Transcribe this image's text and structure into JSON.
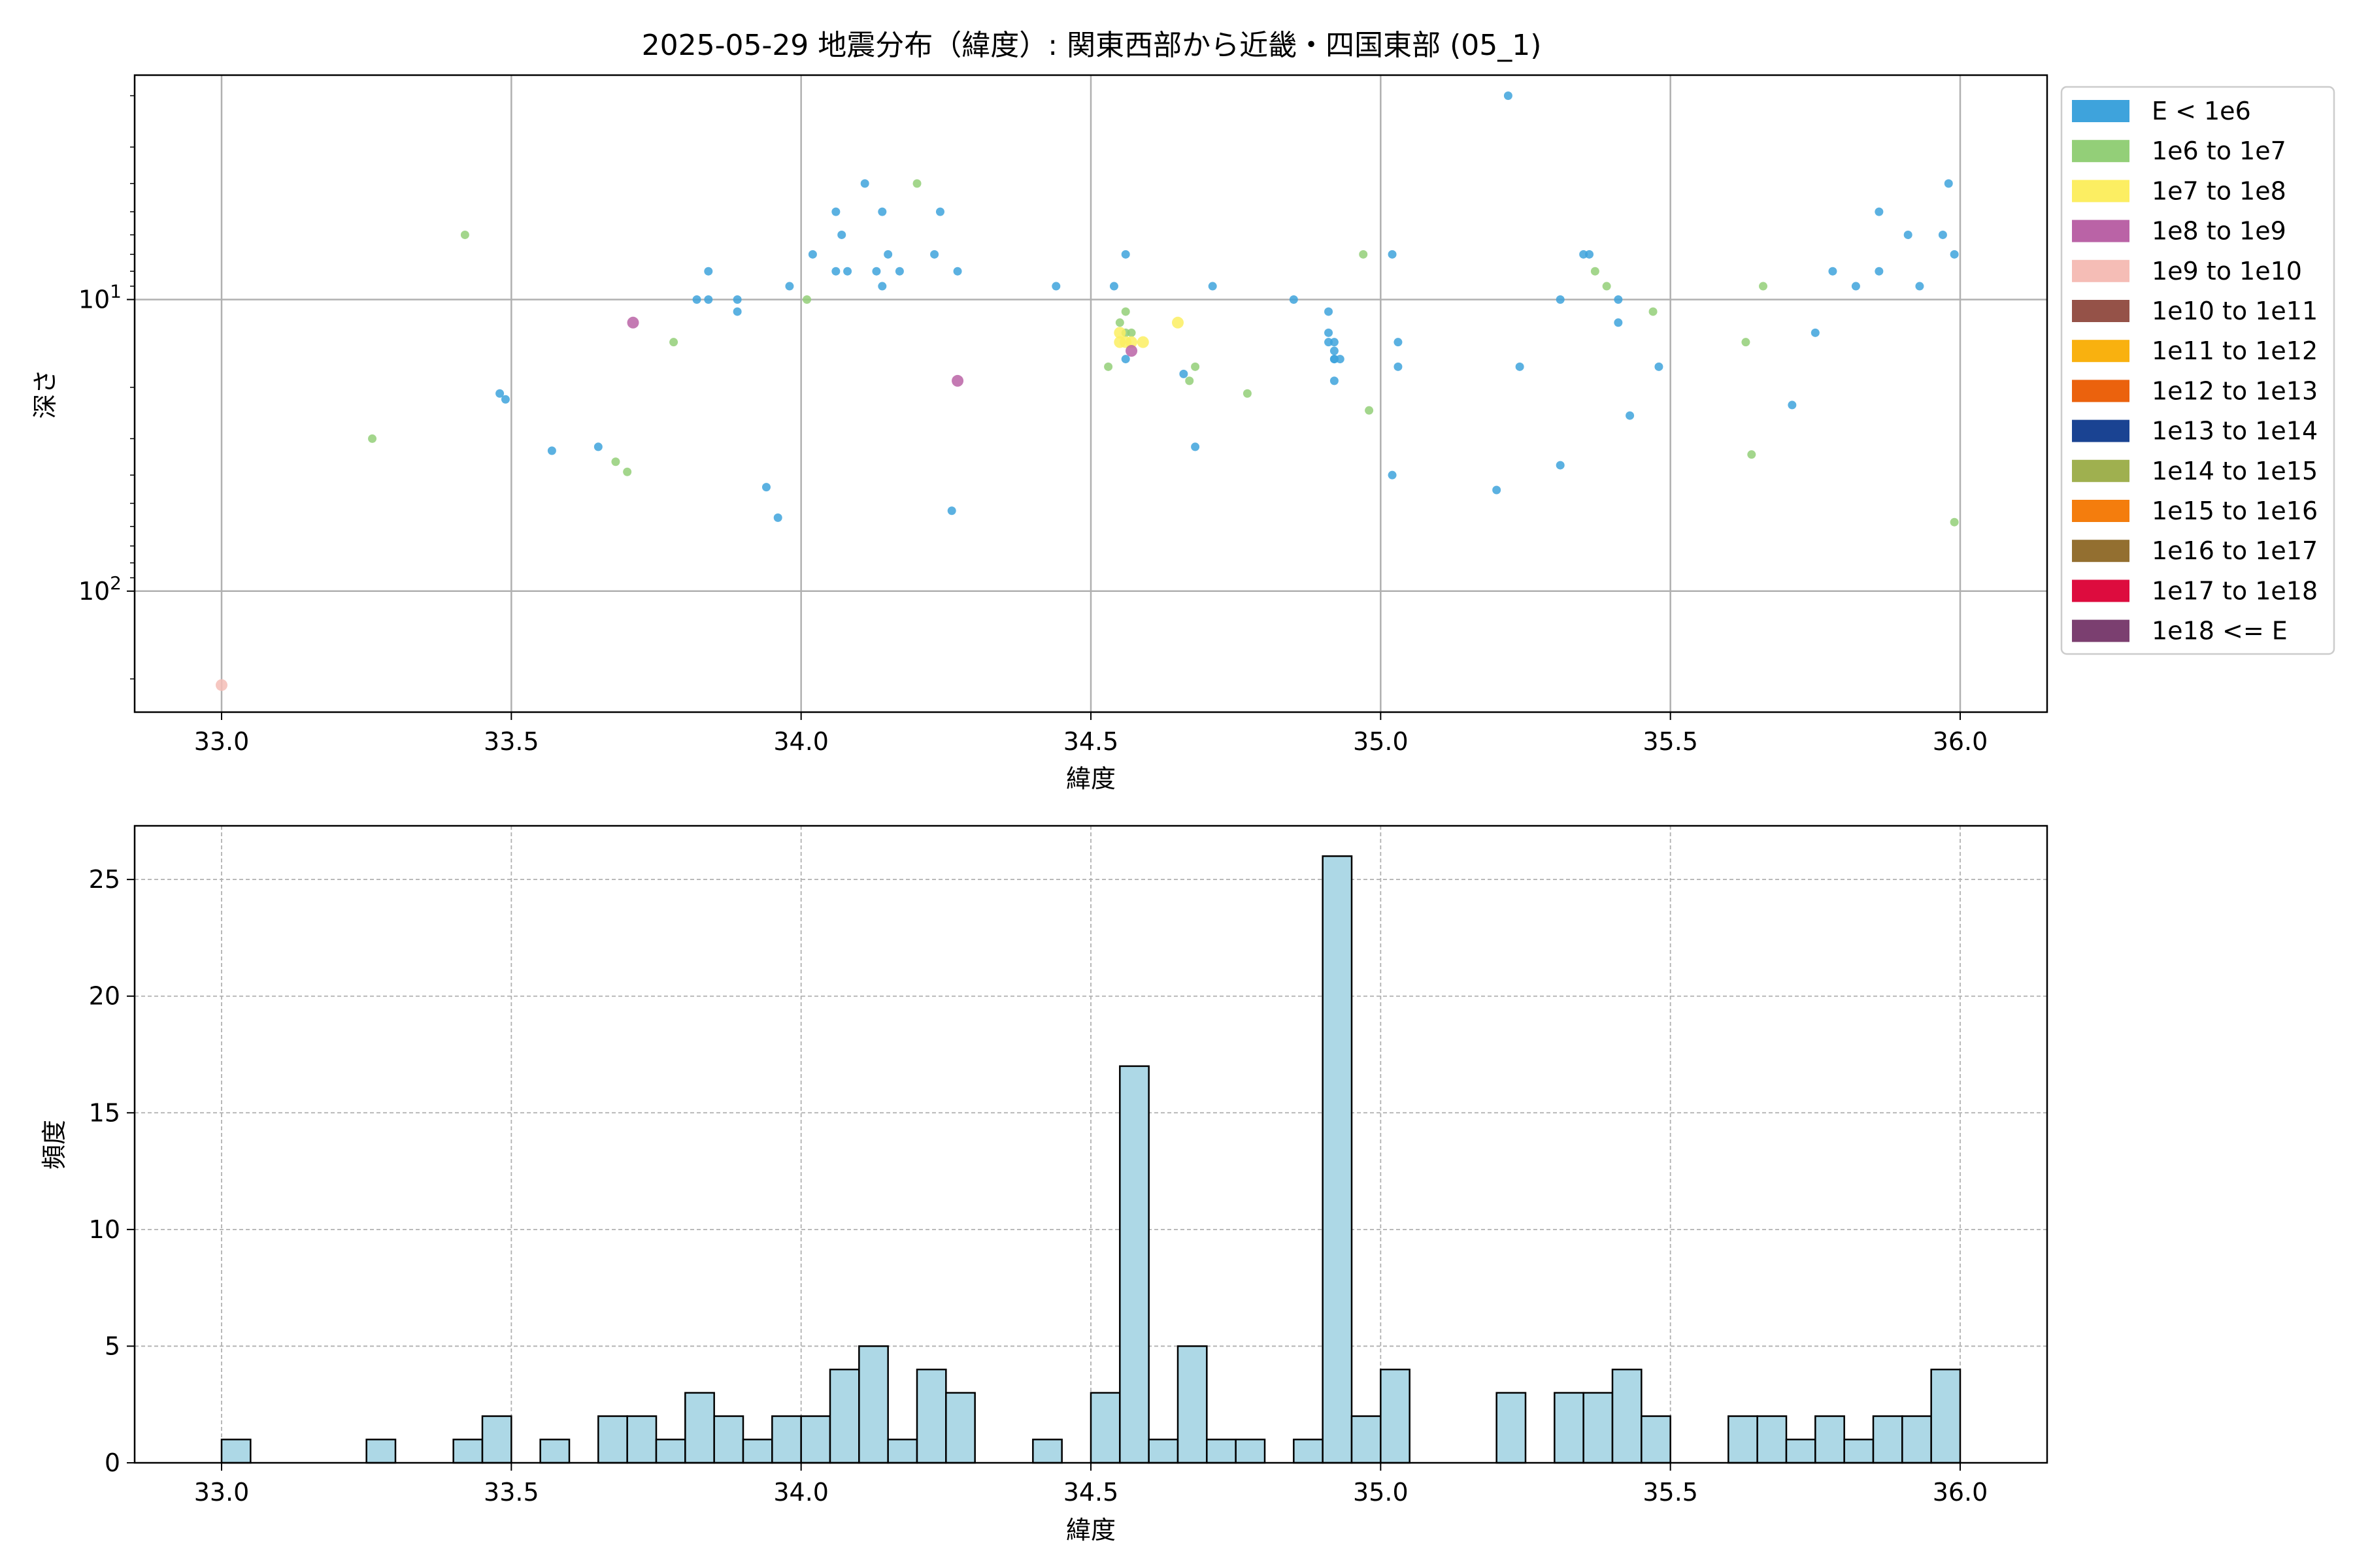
{
  "chart_data": [
    {
      "type": "scatter",
      "title": "2025-05-29 地震分布（緯度）: 関東西部から近畿・四国東部 (05_1)",
      "xlabel": "緯度",
      "ylabel": "深さ",
      "xlim": [
        32.85,
        36.15
      ],
      "ylim": [
        260,
        1.7
      ],
      "yscale": "log",
      "y_inverted": true,
      "grid": true,
      "legend_position": "outside-right",
      "x_ticks": [
        "33.0",
        "33.5",
        "34.0",
        "34.5",
        "35.0",
        "35.5",
        "36.0"
      ],
      "y_ticks": [
        {
          "value": 10,
          "base": "10",
          "exp": "1"
        },
        {
          "value": 100,
          "base": "10",
          "exp": "2"
        }
      ],
      "legend": [
        {
          "label": "E < 1e6",
          "color": "#3ea3dc"
        },
        {
          "label": "1e6 to 1e7",
          "color": "#93cf78"
        },
        {
          "label": "1e7 to 1e8",
          "color": "#fcee62"
        },
        {
          "label": "1e8 to 1e9",
          "color": "#ba63a6"
        },
        {
          "label": "1e9 to 1e10",
          "color": "#f5bdb6"
        },
        {
          "label": "1e10 to 1e11",
          "color": "#955248"
        },
        {
          "label": "1e11 to 1e12",
          "color": "#f9b10f"
        },
        {
          "label": "1e12 to 1e13",
          "color": "#eb620d"
        },
        {
          "label": "1e13 to 1e14",
          "color": "#1a4392"
        },
        {
          "label": "1e14 to 1e15",
          "color": "#9fb04f"
        },
        {
          "label": "1e15 to 1e16",
          "color": "#f47d0d"
        },
        {
          "label": "1e16 to 1e17",
          "color": "#936f30"
        },
        {
          "label": "1e17 to 1e18",
          "color": "#dd0c3e"
        },
        {
          "label": "1e18 <= E",
          "color": "#7b3f70"
        }
      ],
      "series": [
        {
          "name": "E < 1e6",
          "color": "#3ea3dc",
          "points": [
            [
              33.48,
              21
            ],
            [
              33.49,
              22
            ],
            [
              33.57,
              33
            ],
            [
              33.65,
              32
            ],
            [
              33.82,
              10
            ],
            [
              33.84,
              10
            ],
            [
              33.84,
              8
            ],
            [
              33.89,
              10
            ],
            [
              33.89,
              11
            ],
            [
              33.94,
              44
            ],
            [
              33.96,
              56
            ],
            [
              33.98,
              9
            ],
            [
              34.02,
              7
            ],
            [
              34.06,
              5
            ],
            [
              34.06,
              8
            ],
            [
              34.07,
              6
            ],
            [
              34.08,
              8
            ],
            [
              34.11,
              4
            ],
            [
              34.13,
              8
            ],
            [
              34.14,
              5
            ],
            [
              34.14,
              9
            ],
            [
              34.15,
              7
            ],
            [
              34.17,
              8
            ],
            [
              34.23,
              7
            ],
            [
              34.24,
              5
            ],
            [
              34.26,
              53
            ],
            [
              34.27,
              8
            ],
            [
              34.44,
              9
            ],
            [
              34.54,
              9
            ],
            [
              34.56,
              7
            ],
            [
              34.56,
              16
            ],
            [
              34.66,
              18
            ],
            [
              34.68,
              32
            ],
            [
              34.71,
              9
            ],
            [
              34.85,
              10
            ],
            [
              34.91,
              13
            ],
            [
              34.91,
              11
            ],
            [
              34.91,
              14
            ],
            [
              34.92,
              14
            ],
            [
              34.92,
              15
            ],
            [
              34.92,
              16
            ],
            [
              34.92,
              16
            ],
            [
              34.93,
              16
            ],
            [
              34.92,
              19
            ],
            [
              35.02,
              7
            ],
            [
              35.02,
              40
            ],
            [
              35.03,
              14
            ],
            [
              35.03,
              17
            ],
            [
              35.2,
              45
            ],
            [
              35.22,
              2
            ],
            [
              35.24,
              17
            ],
            [
              35.31,
              10
            ],
            [
              35.31,
              37
            ],
            [
              35.35,
              7
            ],
            [
              35.36,
              7
            ],
            [
              35.41,
              10
            ],
            [
              35.41,
              12
            ],
            [
              35.43,
              25
            ],
            [
              35.48,
              17
            ],
            [
              35.71,
              23
            ],
            [
              35.75,
              13
            ],
            [
              35.78,
              8
            ],
            [
              35.82,
              9
            ],
            [
              35.86,
              5
            ],
            [
              35.86,
              8
            ],
            [
              35.91,
              6
            ],
            [
              35.93,
              9
            ],
            [
              35.97,
              6
            ],
            [
              35.98,
              4
            ],
            [
              35.99,
              7
            ]
          ]
        },
        {
          "name": "1e6 to 1e7",
          "color": "#93cf78",
          "points": [
            [
              33.26,
              30
            ],
            [
              33.42,
              6
            ],
            [
              33.68,
              36
            ],
            [
              33.7,
              39
            ],
            [
              33.78,
              14
            ],
            [
              34.01,
              10
            ],
            [
              34.2,
              4
            ],
            [
              34.53,
              17
            ],
            [
              34.55,
              12
            ],
            [
              34.56,
              11
            ],
            [
              34.56,
              13
            ],
            [
              34.57,
              13
            ],
            [
              34.67,
              19
            ],
            [
              34.68,
              17
            ],
            [
              34.77,
              21
            ],
            [
              34.97,
              7
            ],
            [
              34.98,
              24
            ],
            [
              35.37,
              8
            ],
            [
              35.39,
              9
            ],
            [
              35.47,
              11
            ],
            [
              35.63,
              14
            ],
            [
              35.64,
              34
            ],
            [
              35.66,
              9
            ],
            [
              35.99,
              58
            ]
          ]
        },
        {
          "name": "1e7 to 1e8",
          "color": "#fcee62",
          "points": [
            [
              34.55,
              13
            ],
            [
              34.55,
              14
            ],
            [
              34.56,
              14
            ],
            [
              34.57,
              14
            ],
            [
              34.59,
              14
            ],
            [
              34.65,
              12
            ]
          ]
        },
        {
          "name": "1e8 to 1e9",
          "color": "#ba63a6",
          "points": [
            [
              33.71,
              12
            ],
            [
              34.27,
              19
            ],
            [
              34.57,
              15
            ]
          ]
        },
        {
          "name": "1e9 to 1e10",
          "color": "#f5bdb6",
          "points": [
            [
              33.0,
              210
            ]
          ]
        }
      ]
    },
    {
      "type": "bar",
      "title": "",
      "xlabel": "緯度",
      "ylabel": "頻度",
      "xlim": [
        32.85,
        36.15
      ],
      "ylim": [
        0,
        27.3
      ],
      "grid": true,
      "bin_edges": [
        33.0,
        36.0
      ],
      "bin_count": 60,
      "bar_color": "#add8e6",
      "x_ticks": [
        "33.0",
        "33.5",
        "34.0",
        "34.5",
        "35.0",
        "35.5",
        "36.0"
      ],
      "y_ticks": [
        "0",
        "5",
        "10",
        "15",
        "20",
        "25"
      ],
      "values": [
        1,
        0,
        0,
        0,
        0,
        1,
        0,
        0,
        1,
        2,
        0,
        1,
        0,
        2,
        2,
        1,
        3,
        2,
        1,
        2,
        2,
        4,
        5,
        1,
        4,
        3,
        0,
        0,
        1,
        0,
        3,
        17,
        1,
        5,
        1,
        1,
        0,
        1,
        26,
        2,
        4,
        0,
        0,
        0,
        3,
        0,
        3,
        3,
        4,
        2,
        0,
        0,
        2,
        2,
        1,
        2,
        1,
        2,
        2,
        4
      ]
    }
  ]
}
